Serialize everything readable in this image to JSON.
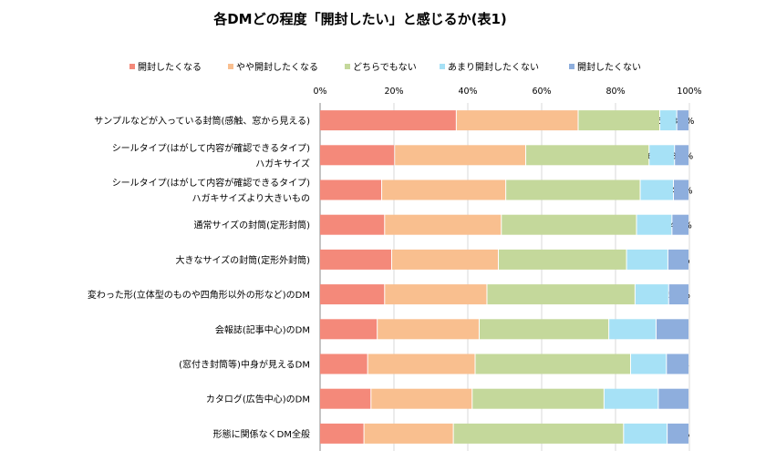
{
  "chart_data": {
    "type": "bar",
    "orientation": "horizontal",
    "stacked": true,
    "title": "各DMどの程度「開封したい」と感じるか(表1)",
    "xlabel": "",
    "ylabel": "",
    "xlim": [
      0,
      100
    ],
    "x_ticks": [
      "0%",
      "20%",
      "40%",
      "60%",
      "80%",
      "100%"
    ],
    "grid": true,
    "legend_position": "top",
    "categories": [
      [
        "サンプルなどが入っている封筒(感触、窓から見える)"
      ],
      [
        "シールタイプ(はがして内容が確認できるタイプ)",
        "ハガキサイズ"
      ],
      [
        "シールタイプ(はがして内容が確認できるタイプ)",
        "ハガキサイズより大きいもの"
      ],
      [
        "通常サイズの封筒(定形封筒)"
      ],
      [
        "大きなサイズの封筒(定形外封筒)"
      ],
      [
        "変わった形(立体型のものや四角形以外の形など)のDM"
      ],
      [
        "会報誌(記事中心)のDM"
      ],
      [
        "(窓付き封筒等)中身が見えるDM"
      ],
      [
        "カタログ(広告中心)のDM"
      ],
      [
        "形態に関係なくDM全般"
      ]
    ],
    "series": [
      {
        "name": "開封したくなる",
        "color": "#F4897A",
        "values": [
          37.0,
          20.3,
          16.8,
          17.6,
          19.5,
          17.6,
          15.6,
          13.0,
          13.9,
          12.0
        ]
      },
      {
        "name": "やや開封したくなる",
        "color": "#F9BF8F",
        "values": [
          33.0,
          35.5,
          33.6,
          31.6,
          28.9,
          27.7,
          27.6,
          29.1,
          27.4,
          24.2
        ]
      },
      {
        "name": "どちらでもない",
        "color": "#C4D89B",
        "values": [
          22.1,
          33.4,
          36.4,
          36.6,
          34.7,
          40.1,
          35.1,
          42.1,
          35.7,
          46.1
        ]
      },
      {
        "name": "あまり開封したくない",
        "color": "#A6E1F6",
        "values": [
          4.6,
          6.9,
          9.0,
          9.6,
          11.2,
          9.1,
          12.8,
          9.7,
          14.7,
          11.8
        ]
      },
      {
        "name": "開封したくない",
        "color": "#8EAEDD",
        "values": [
          3.3,
          3.9,
          4.2,
          4.6,
          5.7,
          5.5,
          8.9,
          6.1,
          8.3,
          5.9
        ]
      }
    ]
  }
}
